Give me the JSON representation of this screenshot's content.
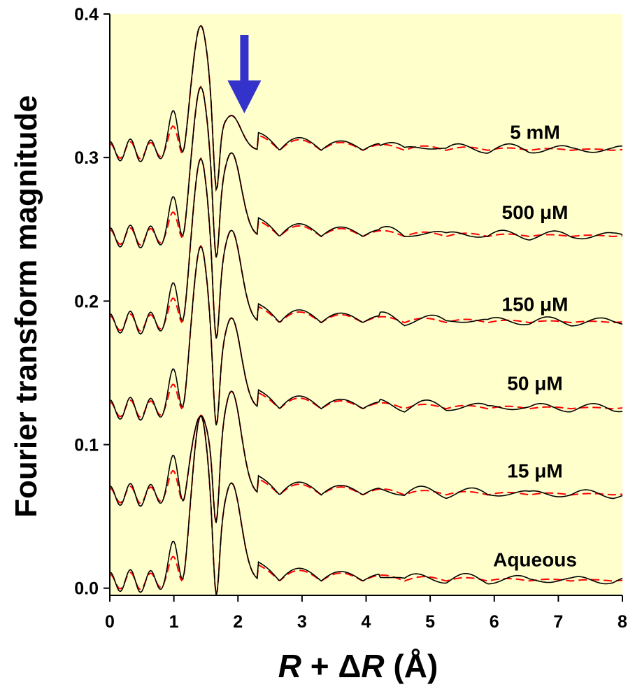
{
  "chart_data": {
    "type": "line",
    "title": "",
    "xlabel": "R + ΔR (Å)",
    "ylabel": "Fourier transform magnitude",
    "xlim": [
      0,
      8
    ],
    "ylim": [
      -0.005,
      0.4
    ],
    "x_ticks": [
      0,
      1,
      2,
      3,
      4,
      5,
      6,
      7,
      8
    ],
    "y_ticks": [
      0.0,
      0.1,
      0.2,
      0.3,
      0.4
    ],
    "x_tick_labels": [
      "0",
      "1",
      "2",
      "3",
      "4",
      "5",
      "6",
      "7",
      "8"
    ],
    "y_tick_labels": [
      "0.0",
      "0.1",
      "0.2",
      "0.3",
      "0.4"
    ],
    "plot_background": "#ffffcc",
    "grid": false,
    "legend": "none",
    "line_styles": {
      "data": {
        "color": "#000000",
        "style": "solid"
      },
      "fit": {
        "color": "#ff0000",
        "style": "dashed"
      }
    },
    "annotation": {
      "type": "arrow",
      "color": "#3333cc",
      "points_to_x": 2.1,
      "direction": "down"
    },
    "series": [
      {
        "label": "5 mM",
        "offset": 0.3,
        "peak_a": 0.088,
        "peak_b": 0.024,
        "label_y": 0.318
      },
      {
        "label": "500 μM",
        "offset": 0.24,
        "peak_a": 0.105,
        "peak_b": 0.058,
        "label_y": 0.262
      },
      {
        "label": "150 μM",
        "offset": 0.18,
        "peak_a": 0.115,
        "peak_b": 0.064,
        "label_y": 0.198
      },
      {
        "label": "50 μM",
        "offset": 0.12,
        "peak_a": 0.114,
        "peak_b": 0.063,
        "label_y": 0.143
      },
      {
        "label": "15 μM",
        "offset": 0.06,
        "peak_a": 0.056,
        "peak_b": 0.072,
        "label_y": 0.082
      },
      {
        "label": "Aqueous",
        "offset": 0.0,
        "peak_a": 0.116,
        "peak_b": 0.068,
        "label_y": 0.02
      }
    ]
  }
}
